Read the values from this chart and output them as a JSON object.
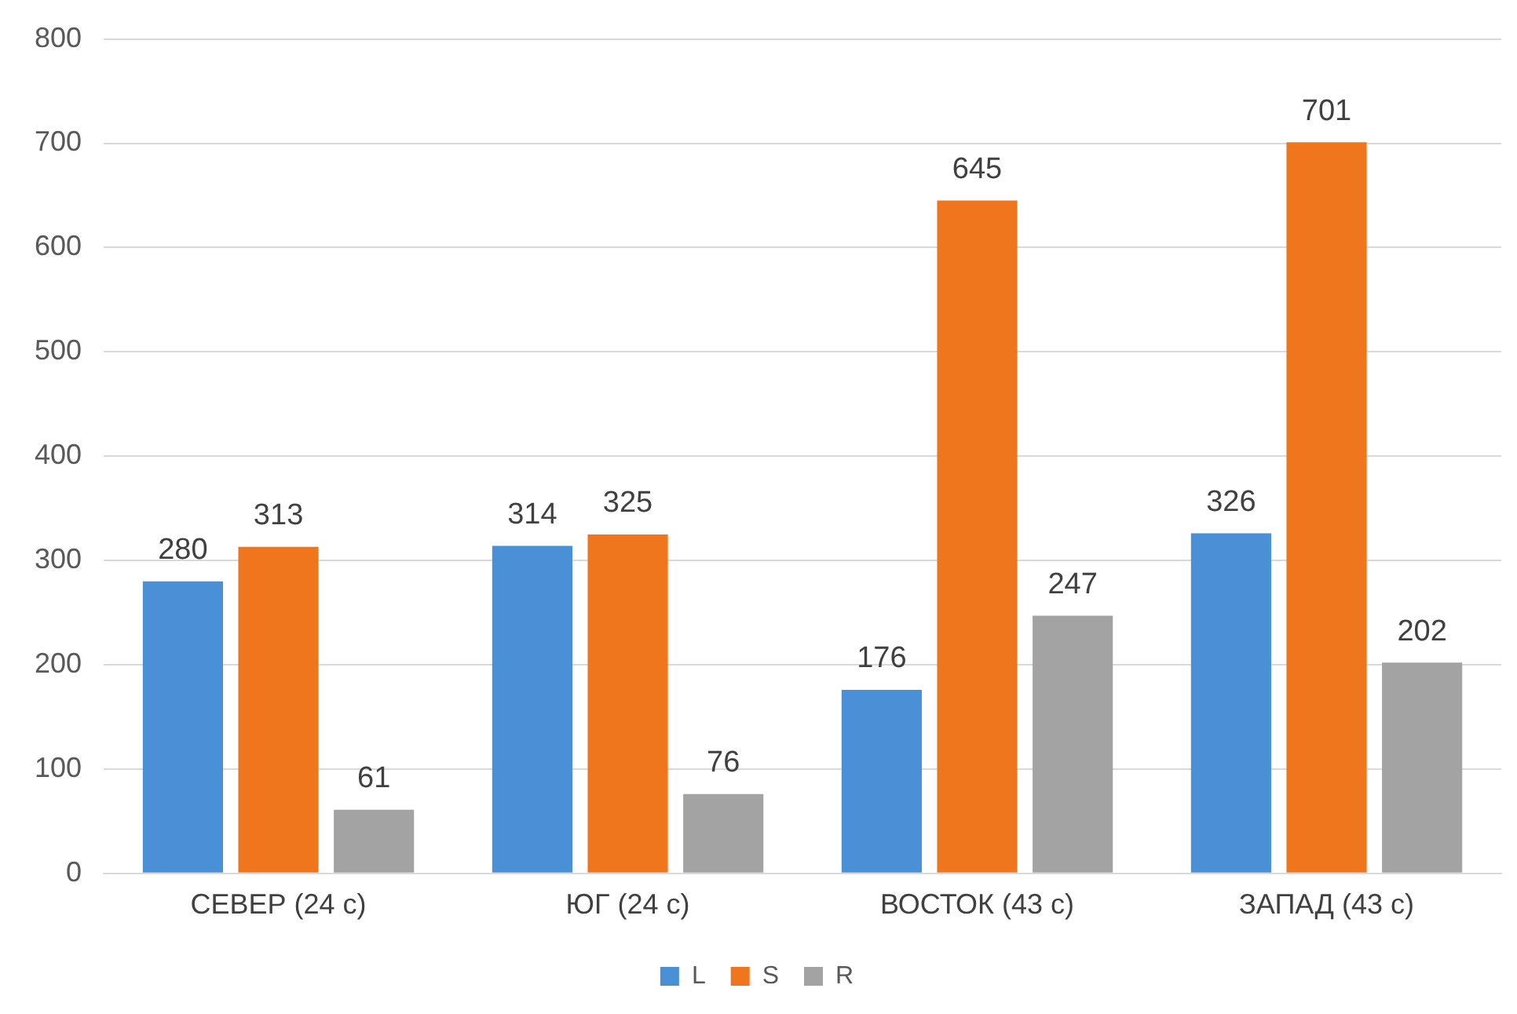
{
  "chart_data": {
    "type": "bar",
    "categories": [
      "СЕВЕР (24 с)",
      "ЮГ (24 с)",
      "ВОСТОК (43 с)",
      "ЗАПАД (43 с)"
    ],
    "series": [
      {
        "name": "L",
        "color": "#4a90d6",
        "values": [
          280,
          314,
          176,
          326
        ]
      },
      {
        "name": "S",
        "color": "#f0761e",
        "values": [
          313,
          325,
          645,
          701
        ]
      },
      {
        "name": "R",
        "color": "#a3a3a3",
        "values": [
          61,
          76,
          247,
          202
        ]
      }
    ],
    "ylim": [
      0,
      800
    ],
    "yticks": [
      0,
      100,
      200,
      300,
      400,
      500,
      600,
      700,
      800
    ],
    "grid": "y",
    "legend": "bottom",
    "data_labels": true
  }
}
